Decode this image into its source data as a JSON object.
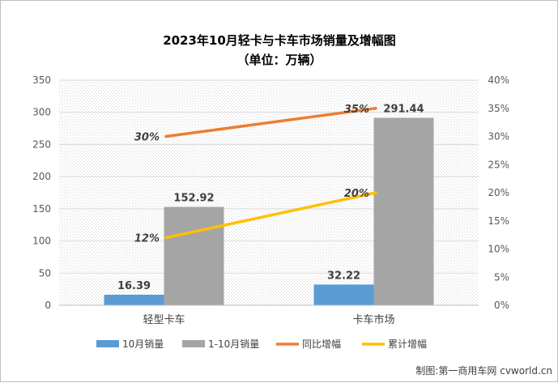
{
  "chart_data": {
    "type": "bar+line",
    "title_line1": "2023年10月轻卡与卡车市场销量及增幅图",
    "title_line2": "（单位：万辆）",
    "categories": [
      "轻型卡车",
      "卡车市场"
    ],
    "bar_series": [
      {
        "name": "10月销量",
        "values": [
          16.39,
          32.22
        ],
        "color": "#5b9bd5",
        "labels": [
          "16.39",
          "32.22"
        ]
      },
      {
        "name": "1-10月销量",
        "values": [
          152.92,
          291.44
        ],
        "color": "#a5a5a5",
        "labels": [
          "152.92",
          "291.44"
        ]
      }
    ],
    "line_series": [
      {
        "name": "同比增幅",
        "values": [
          30,
          35
        ],
        "color": "#ed7d31",
        "labels": [
          "30%",
          "35%"
        ]
      },
      {
        "name": "累计增幅",
        "values": [
          12,
          20
        ],
        "color": "#ffc000",
        "labels": [
          "12%",
          "20%"
        ]
      }
    ],
    "y_left": {
      "min": 0,
      "max": 350,
      "ticks": [
        "0",
        "50",
        "100",
        "150",
        "200",
        "250",
        "300",
        "350"
      ]
    },
    "y_right": {
      "min": 0,
      "max": 40,
      "ticks": [
        "0%",
        "5%",
        "10%",
        "15%",
        "20%",
        "25%",
        "30%",
        "35%",
        "40%"
      ]
    },
    "legend_position": "bottom",
    "grid": true
  },
  "credit": "制图:第一商用车网 cvworld.cn"
}
